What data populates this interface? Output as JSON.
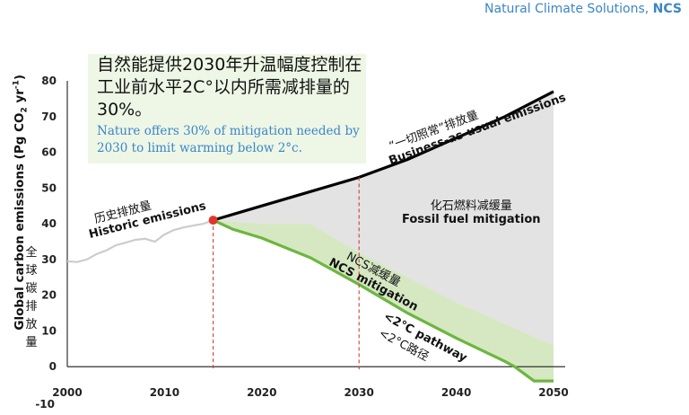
{
  "header": {
    "brand_prefix": "Natural Climate Solutions, ",
    "brand_bold": "NCS"
  },
  "callout": {
    "text_zh": "自然能提供2030年升温幅度控制在工业前水平2C°以内所需减排量的30%。",
    "text_en": "Nature offers 30% of mitigation needed by 2030 to limit warming below 2°c."
  },
  "colors": {
    "historic": "#cccccc",
    "business_as_usual": "#000000",
    "fossil_fuel_mitigation": "#e3e3e3",
    "ncs_mitigation": "#d5e8c2",
    "pathway_2c": "#6cb640",
    "marker": "#e2342b",
    "reference_line": "#d33a3a"
  },
  "chart_data": {
    "type": "area",
    "ylabel": "Global carbon emissions (Pg CO2 yr-1)",
    "ylabel_zh": "全球碳排放量",
    "xlim": [
      2000,
      2050
    ],
    "ylim": [
      -10,
      80
    ],
    "x_ticks": [
      "2000",
      "2010",
      "2020",
      "2030",
      "2040",
      "2050"
    ],
    "y_ticks": [
      "-10",
      "0",
      "10",
      "20",
      "30",
      "40",
      "50",
      "60",
      "70",
      "80"
    ],
    "grid": false,
    "reference_lines_x": [
      2015,
      2030
    ],
    "marker_point": {
      "x": 2015,
      "y": 41
    },
    "series": [
      {
        "name_zh": "历史排放量",
        "name": "Historic emissions",
        "x": [
          2000,
          2001,
          2002,
          2003,
          2004,
          2005,
          2006,
          2007,
          2008,
          2009,
          2010,
          2011,
          2012,
          2013,
          2014,
          2015
        ],
        "y": [
          29.5,
          29.3,
          30,
          31.5,
          32.5,
          34,
          34.7,
          35.5,
          35.8,
          35,
          37,
          38.3,
          39,
          39.5,
          40,
          41
        ]
      },
      {
        "name_zh": "“一切照常”排放量",
        "name": "Business-as-usual emissions",
        "x": [
          2015,
          2020,
          2025,
          2030,
          2035,
          2040,
          2045,
          2050
        ],
        "y": [
          41,
          45,
          49,
          53,
          58,
          64,
          70,
          77
        ]
      },
      {
        "name_zh": "<2°C路径",
        "name": "<2°C pathway",
        "x": [
          2015,
          2017,
          2020,
          2025,
          2030,
          2035,
          2040,
          2045,
          2046,
          2048,
          2050
        ],
        "y": [
          41,
          38.5,
          36,
          30.5,
          23,
          15,
          8,
          1.5,
          0,
          -4,
          -4
        ]
      },
      {
        "name_zh": "NCS减缓量",
        "name": "NCS mitigation",
        "x": [
          2015,
          2020,
          2025,
          2030,
          2035,
          2040,
          2045,
          2050
        ],
        "y": [
          41,
          40,
          40,
          32,
          25,
          18,
          12,
          6
        ]
      }
    ],
    "regions": [
      {
        "name_zh": "化石燃料减缓量",
        "name": "Fossil fuel mitigation"
      }
    ]
  }
}
